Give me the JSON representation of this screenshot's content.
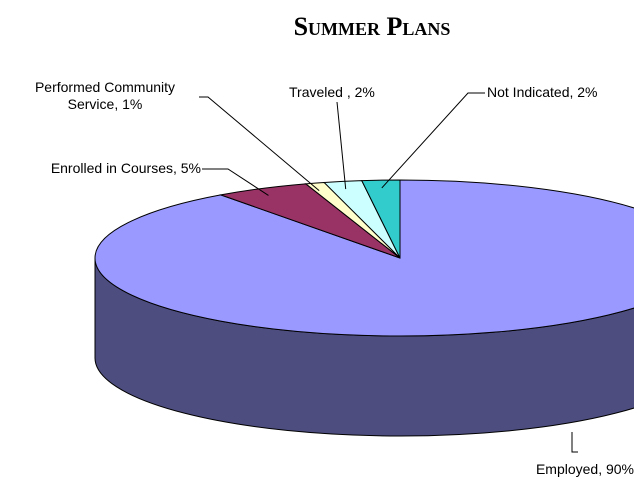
{
  "chart_data": {
    "type": "pie3d",
    "title": "Summer Plans",
    "categories": [
      "Employed",
      "Enrolled in Courses",
      "Performed Community Service",
      "Traveled",
      "Not Indicated"
    ],
    "values": [
      90,
      5,
      1,
      2,
      2
    ],
    "value_labels": [
      "Employed, 90%",
      "Enrolled in Courses, 5%",
      "Performed Community Service, 1%",
      "Traveled , 2%",
      "Not Indicated, 2%"
    ],
    "colors": [
      "#9999ff",
      "#993366",
      "#ffffcc",
      "#ccffff",
      "#33cccc"
    ]
  }
}
